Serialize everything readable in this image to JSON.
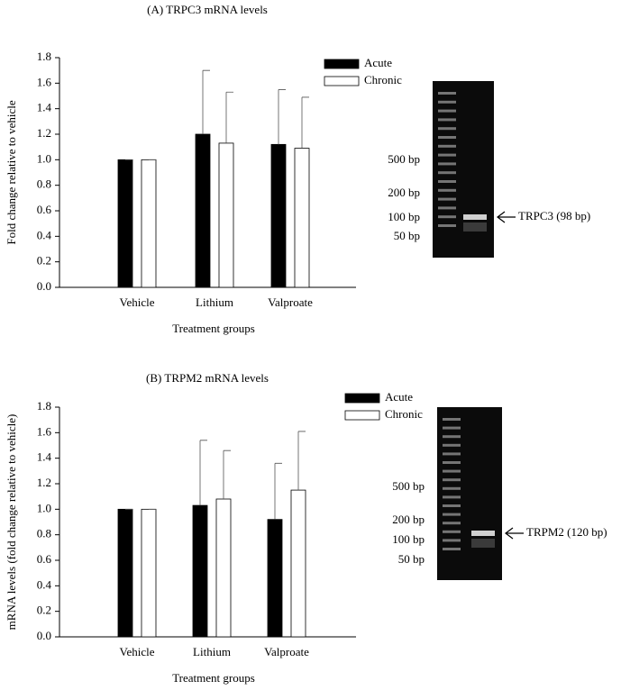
{
  "chart_data": [
    {
      "type": "bar",
      "title": "(A)  TRPC3 mRNA levels",
      "xlabel": "Treatment groups",
      "ylabel": "Fold change relative to vehicle",
      "categories": [
        "Vehicle",
        "Lithium",
        "Valproate"
      ],
      "series": [
        {
          "name": "Acute",
          "color": "#000000",
          "values": [
            1.0,
            1.2,
            1.12
          ],
          "errors": [
            0,
            0.5,
            0.43
          ]
        },
        {
          "name": "Chronic",
          "color": "#ffffff",
          "values": [
            1.0,
            1.13,
            1.09
          ],
          "errors": [
            0,
            0.4,
            0.4
          ]
        }
      ],
      "ylim": [
        0,
        1.8
      ],
      "yticks": [
        {
          "value": 0,
          "label": "0.0"
        },
        {
          "value": 0.2,
          "label": "0.2"
        },
        {
          "value": 0.4,
          "label": "0.4"
        },
        {
          "value": 0.6,
          "label": "0.6"
        },
        {
          "value": 0.8,
          "label": "0.8"
        },
        {
          "value": 1,
          "label": "1.0"
        },
        {
          "value": 1.2,
          "label": "1.2"
        },
        {
          "value": 1.4,
          "label": "1.4"
        },
        {
          "value": 1.6,
          "label": "1.6"
        },
        {
          "value": 1.8,
          "label": "1.8"
        }
      ],
      "gel_labels": [
        "500 bp",
        "200 bp",
        "100 bp",
        "50 bp"
      ],
      "gel_target": "TRPC3 (98 bp)"
    },
    {
      "type": "bar",
      "title": "(B) TRPM2 mRNA levels",
      "xlabel": "Treatment groups",
      "ylabel": "mRNA levels (fold change relative to vehicle)",
      "categories": [
        "Vehicle",
        "Lithium",
        "Valproate"
      ],
      "series": [
        {
          "name": "Acute",
          "color": "#000000",
          "values": [
            1.0,
            1.03,
            0.92
          ],
          "errors": [
            0,
            0.51,
            0.44
          ]
        },
        {
          "name": "Chronic",
          "color": "#ffffff",
          "values": [
            1.0,
            1.08,
            1.15
          ],
          "errors": [
            0,
            0.38,
            0.46
          ]
        }
      ],
      "ylim": [
        0,
        1.8
      ],
      "yticks": [
        {
          "value": 0,
          "label": "0.0"
        },
        {
          "value": 0.2,
          "label": "0.2"
        },
        {
          "value": 0.4,
          "label": "0.4"
        },
        {
          "value": 0.6,
          "label": "0.6"
        },
        {
          "value": 0.8,
          "label": "0.8"
        },
        {
          "value": 1,
          "label": "1.0"
        },
        {
          "value": 1.2,
          "label": "1.2"
        },
        {
          "value": 1.4,
          "label": "1.4"
        },
        {
          "value": 1.6,
          "label": "1.6"
        },
        {
          "value": 1.8,
          "label": "1.8"
        }
      ],
      "gel_labels": [
        "500 bp",
        "200 bp",
        "100 bp",
        "50 bp"
      ],
      "gel_target": "TRPM2 (120 bp)"
    }
  ]
}
